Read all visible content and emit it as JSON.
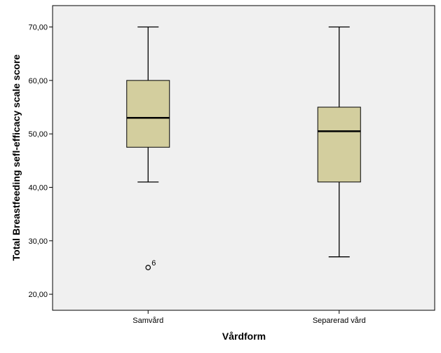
{
  "chart_data": {
    "type": "boxplot",
    "xlabel": "Vårdform",
    "ylabel": "Total Breastfeeding sefl-efficacy scale score",
    "ylim": [
      17,
      74
    ],
    "yticks": [
      20,
      30,
      40,
      50,
      60,
      70
    ],
    "ytick_labels": [
      "20,00",
      "30,00",
      "40,00",
      "50,00",
      "60,00",
      "70,00"
    ],
    "categories": [
      "Samvård",
      "Separerad vård"
    ],
    "boxes": [
      {
        "category": "Samvård",
        "whisker_low": 41,
        "q1": 47.5,
        "median": 53,
        "q3": 60,
        "whisker_high": 70,
        "outliers": [
          {
            "value": 25,
            "label": "6"
          }
        ]
      },
      {
        "category": "Separerad vård",
        "whisker_low": 27,
        "q1": 41,
        "median": 50.5,
        "q3": 55,
        "whisker_high": 70,
        "outliers": []
      }
    ],
    "colors": {
      "box_fill": "#d3ce9e",
      "plot_bg": "#f0f0f0",
      "stroke": "#000000"
    }
  }
}
